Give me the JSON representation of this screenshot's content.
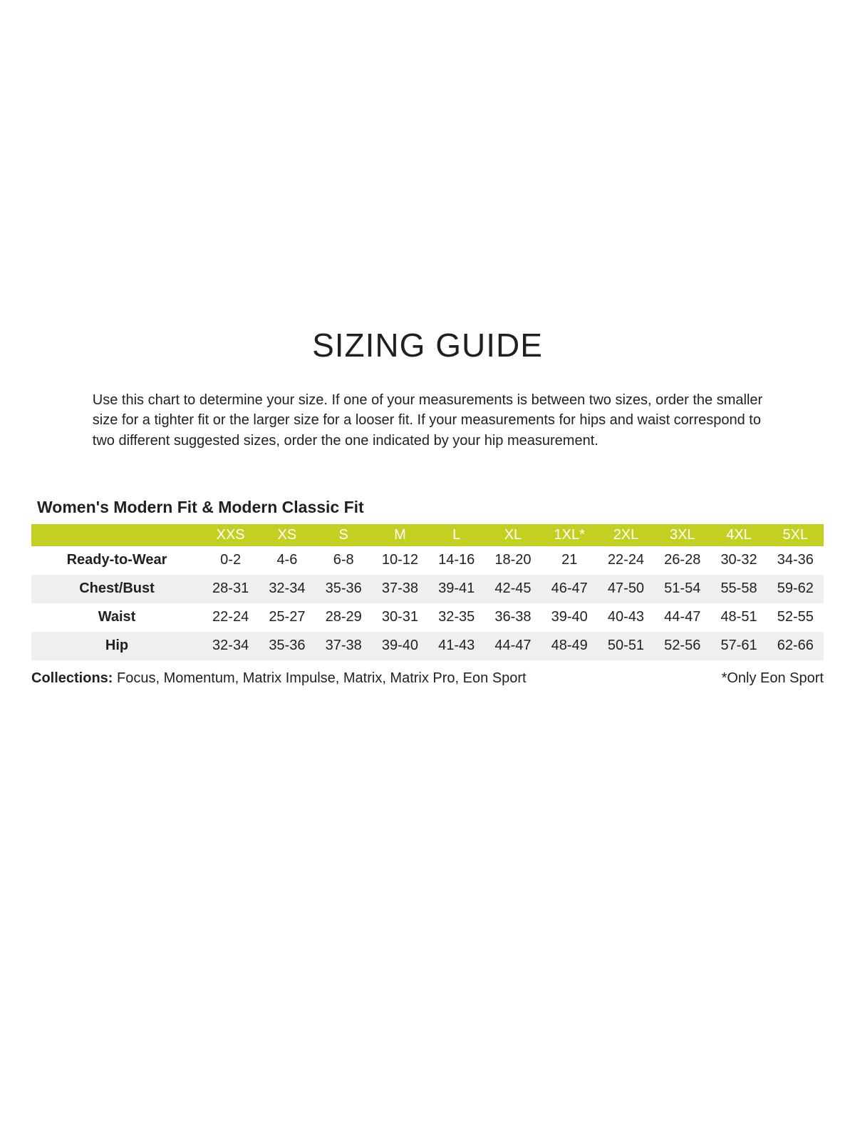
{
  "page": {
    "title": "SIZING GUIDE",
    "intro_lines": [
      "Use this chart to determine your size. If one of your measurements is between two sizes, order the smaller",
      "size for a tighter fit or the larger size for a looser fit. If your measurements for hips and waist correspond to",
      "two different suggested sizes, order the one indicated by your hip measurement."
    ]
  },
  "section": {
    "heading": "Women's Modern Fit & Modern Classic Fit"
  },
  "colors": {
    "header_bg": "#c3d021",
    "header_text": "#ffffff",
    "stripe_bg": "#efeff1",
    "text": "#231f20"
  },
  "chart_data": {
    "type": "table",
    "title": "Women's Modern Fit & Modern Classic Fit",
    "columns": [
      "",
      "XXS",
      "XS",
      "S",
      "M",
      "L",
      "XL",
      "1XL*",
      "2XL",
      "3XL",
      "4XL",
      "5XL"
    ],
    "rows": [
      [
        "Ready-to-Wear",
        "0-2",
        "4-6",
        "6-8",
        "10-12",
        "14-16",
        "18-20",
        "21",
        "22-24",
        "26-28",
        "30-32",
        "34-36"
      ],
      [
        "Chest/Bust",
        "28-31",
        "32-34",
        "35-36",
        "37-38",
        "39-41",
        "42-45",
        "46-47",
        "47-50",
        "51-54",
        "55-58",
        "59-62"
      ],
      [
        "Waist",
        "22-24",
        "25-27",
        "28-29",
        "30-31",
        "32-35",
        "36-38",
        "39-40",
        "40-43",
        "44-47",
        "48-51",
        "52-55"
      ],
      [
        "Hip",
        "32-34",
        "35-36",
        "37-38",
        "39-40",
        "41-43",
        "44-47",
        "48-49",
        "50-51",
        "52-56",
        "57-61",
        "62-66"
      ]
    ]
  },
  "table": {
    "header": [
      "XXS",
      "XS",
      "S",
      "M",
      "L",
      "XL",
      "1XL*",
      "2XL",
      "3XL",
      "4XL",
      "5XL"
    ],
    "rows": [
      {
        "label": "Ready-to-Wear",
        "values": [
          "0-2",
          "4-6",
          "6-8",
          "10-12",
          "14-16",
          "18-20",
          "21",
          "22-24",
          "26-28",
          "30-32",
          "34-36"
        ]
      },
      {
        "label": "Chest/Bust",
        "values": [
          "28-31",
          "32-34",
          "35-36",
          "37-38",
          "39-41",
          "42-45",
          "46-47",
          "47-50",
          "51-54",
          "55-58",
          "59-62"
        ]
      },
      {
        "label": "Waist",
        "values": [
          "22-24",
          "25-27",
          "28-29",
          "30-31",
          "32-35",
          "36-38",
          "39-40",
          "40-43",
          "44-47",
          "48-51",
          "52-55"
        ]
      },
      {
        "label": "Hip",
        "values": [
          "32-34",
          "35-36",
          "37-38",
          "39-40",
          "41-43",
          "44-47",
          "48-49",
          "50-51",
          "52-56",
          "57-61",
          "62-66"
        ]
      }
    ]
  },
  "footer": {
    "collections_label": "Collections:",
    "collections_list": "Focus, Momentum, Matrix Impulse, Matrix, Matrix Pro, Eon Sport",
    "note": "*Only Eon Sport"
  }
}
